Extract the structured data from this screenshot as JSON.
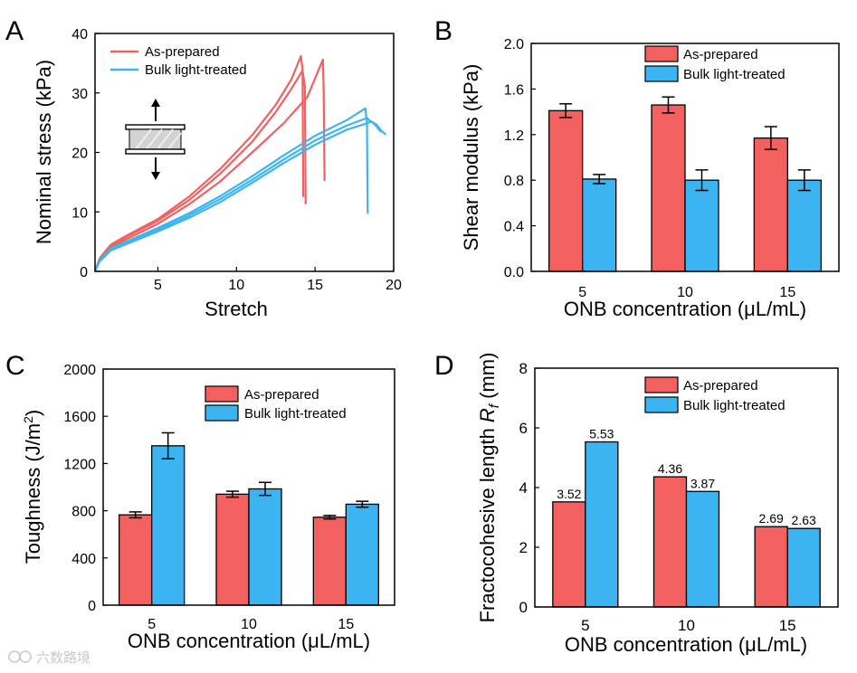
{
  "colors": {
    "as_prepared": "#f26060",
    "bulk": "#3db4f2",
    "axis": "#000000"
  },
  "watermark": "六数路境",
  "chart_data": [
    {
      "panel_label": "A",
      "type": "line",
      "xlabel": "Stretch",
      "ylabel": "Nominal stress (kPa)",
      "xlim": [
        1,
        20
      ],
      "ylim": [
        0,
        40
      ],
      "xticks": [
        5,
        10,
        15,
        20
      ],
      "yticks": [
        0,
        10,
        20,
        30,
        40
      ],
      "legend_position": "top-left",
      "inset_icon": "stretch-sample-icon",
      "series": [
        {
          "name": "As-prepared",
          "color": "as_prepared",
          "curves": [
            {
              "points": [
                [
                  1,
                  0
                ],
                [
                  1.3,
                  2.2
                ],
                [
                  2,
                  4.5
                ],
                [
                  3,
                  6.0
                ],
                [
                  5,
                  8.8
                ],
                [
                  7,
                  12.6
                ],
                [
                  9,
                  17.3
                ],
                [
                  11,
                  22.9
                ],
                [
                  12.5,
                  28
                ],
                [
                  13.5,
                  32.3
                ],
                [
                  14.1,
                  36.2
                ],
                [
                  14.2,
                  34
                ],
                [
                  14.25,
                  12.5
                ]
              ]
            },
            {
              "points": [
                [
                  1,
                  0
                ],
                [
                  1.3,
                  2.1
                ],
                [
                  2,
                  4.3
                ],
                [
                  3,
                  5.8
                ],
                [
                  5,
                  8.5
                ],
                [
                  7,
                  12.0
                ],
                [
                  9,
                  16.5
                ],
                [
                  11,
                  21.8
                ],
                [
                  12.5,
                  26.8
                ],
                [
                  13.5,
                  30.7
                ],
                [
                  14.2,
                  33.8
                ],
                [
                  14.35,
                  31
                ],
                [
                  14.4,
                  11.3
                ]
              ]
            },
            {
              "points": [
                [
                  1,
                  0
                ],
                [
                  1.3,
                  2.0
                ],
                [
                  2,
                  4.0
                ],
                [
                  3,
                  5.4
                ],
                [
                  5,
                  8.0
                ],
                [
                  7,
                  11.3
                ],
                [
                  9,
                  15.2
                ],
                [
                  11,
                  20.0
                ],
                [
                  13,
                  24.9
                ],
                [
                  14.5,
                  29.3
                ],
                [
                  15.5,
                  35.6
                ],
                [
                  15.55,
                  30
                ],
                [
                  15.6,
                  15.2
                ]
              ]
            }
          ]
        },
        {
          "name": "Bulk light-treated",
          "color": "bulk",
          "curves": [
            {
              "points": [
                [
                  1,
                  0
                ],
                [
                  1.3,
                  1.9
                ],
                [
                  2,
                  3.9
                ],
                [
                  3,
                  5.0
                ],
                [
                  5,
                  7.3
                ],
                [
                  7,
                  9.8
                ],
                [
                  9,
                  12.7
                ],
                [
                  11,
                  16.0
                ],
                [
                  13,
                  19.5
                ],
                [
                  15,
                  22.8
                ],
                [
                  17,
                  25.4
                ],
                [
                  18.2,
                  27.4
                ],
                [
                  18.3,
                  25
                ],
                [
                  18.35,
                  9.7
                ]
              ]
            },
            {
              "points": [
                [
                  1,
                  0
                ],
                [
                  1.3,
                  1.8
                ],
                [
                  2,
                  3.7
                ],
                [
                  3,
                  4.8
                ],
                [
                  5,
                  7.0
                ],
                [
                  7,
                  9.4
                ],
                [
                  9,
                  12.2
                ],
                [
                  11,
                  15.4
                ],
                [
                  13,
                  18.8
                ],
                [
                  15,
                  22.0
                ],
                [
                  17,
                  24.5
                ],
                [
                  18.3,
                  25.8
                ],
                [
                  18.5,
                  25.3
                ],
                [
                  18.9,
                  24.7
                ],
                [
                  19.2,
                  23.7
                ],
                [
                  19.5,
                  23.0
                ]
              ]
            },
            {
              "points": [
                [
                  1,
                  0
                ],
                [
                  1.3,
                  1.7
                ],
                [
                  2,
                  3.5
                ],
                [
                  3,
                  4.6
                ],
                [
                  5,
                  6.7
                ],
                [
                  7,
                  9.0
                ],
                [
                  9,
                  11.7
                ],
                [
                  11,
                  14.9
                ],
                [
                  13,
                  18.2
                ],
                [
                  15,
                  21.3
                ],
                [
                  17,
                  23.8
                ],
                [
                  18.2,
                  24.8
                ],
                [
                  18.6,
                  25.2
                ],
                [
                  18.9,
                  24.4
                ],
                [
                  19.2,
                  23.4
                ]
              ]
            }
          ]
        }
      ]
    },
    {
      "panel_label": "B",
      "type": "bar",
      "xlabel": "ONB concentration (μL/mL)",
      "ylabel": "Shear modulus (kPa)",
      "categories": [
        "5",
        "10",
        "15"
      ],
      "ylim": [
        0,
        2.0
      ],
      "yticks": [
        "0.0",
        "0.4",
        "0.8",
        "1.2",
        "1.6",
        "2.0"
      ],
      "legend_position": "top-right",
      "series": [
        {
          "name": "As-prepared",
          "color": "as_prepared",
          "values": [
            1.41,
            1.46,
            1.17
          ],
          "errors": [
            0.06,
            0.07,
            0.1
          ]
        },
        {
          "name": "Bulk light-treated",
          "color": "bulk",
          "values": [
            0.81,
            0.8,
            0.8
          ],
          "errors": [
            0.04,
            0.09,
            0.09
          ]
        }
      ]
    },
    {
      "panel_label": "C",
      "type": "bar",
      "xlabel": "ONB concentration (μL/mL)",
      "ylabel": "Toughness (J/m",
      "ylabel_sup": "2",
      "ylabel_end": ")",
      "categories": [
        "5",
        "10",
        "15"
      ],
      "ylim": [
        0,
        2000
      ],
      "yticks": [
        "0",
        "400",
        "800",
        "1200",
        "1600",
        "2000"
      ],
      "legend_position": "top-right",
      "series": [
        {
          "name": "As-prepared",
          "color": "as_prepared",
          "values": [
            765,
            940,
            745
          ],
          "errors": [
            25,
            25,
            15
          ]
        },
        {
          "name": "Bulk light-treated",
          "color": "bulk",
          "values": [
            1350,
            985,
            855
          ],
          "errors": [
            110,
            55,
            25
          ]
        }
      ]
    },
    {
      "panel_label": "D",
      "type": "bar",
      "xlabel": "ONB concentration (μL/mL)",
      "ylabel": "Fractocohesive length",
      "ylabel_symbol": "R",
      "ylabel_sub": "f",
      "ylabel_unit": "(mm)",
      "categories": [
        "5",
        "10",
        "15"
      ],
      "ylim": [
        0,
        8
      ],
      "yticks": [
        "0",
        "2",
        "4",
        "6",
        "8"
      ],
      "legend_position": "top-right",
      "series": [
        {
          "name": "As-prepared",
          "color": "as_prepared",
          "values": [
            3.52,
            4.36,
            2.69
          ],
          "labels": [
            "3.52",
            "4.36",
            "2.69"
          ]
        },
        {
          "name": "Bulk light-treated",
          "color": "bulk",
          "values": [
            5.53,
            3.87,
            2.63
          ],
          "labels": [
            "5.53",
            "3.87",
            "2.63"
          ]
        }
      ]
    }
  ]
}
